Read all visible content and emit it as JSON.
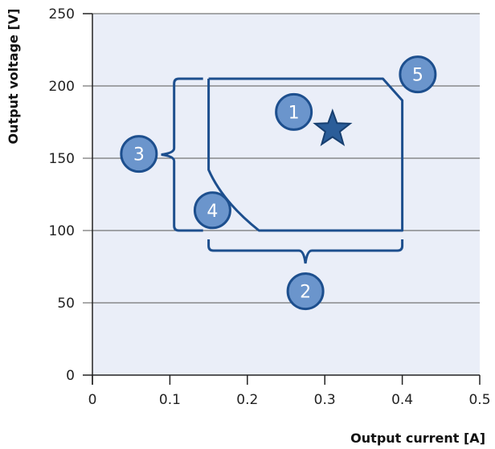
{
  "chart_data": {
    "type": "diagram",
    "xlabel": "Output current [A]",
    "ylabel": "Output voltage [V]",
    "xlim": [
      0,
      0.5
    ],
    "ylim": [
      0,
      250
    ],
    "x_ticks": [
      "0",
      "0.1",
      "0.2",
      "0.3",
      "0.4",
      "0.5"
    ],
    "y_ticks": [
      "0",
      "50",
      "100",
      "150",
      "200",
      "250"
    ],
    "grid": "horizontal",
    "operating_region": {
      "outline": [
        [
          0.15,
          205
        ],
        [
          0.375,
          205
        ],
        [
          0.4,
          190
        ],
        [
          0.4,
          100
        ],
        [
          0.215,
          100
        ],
        [
          0.15,
          142
        ],
        [
          0.15,
          205
        ]
      ]
    },
    "voltage_bracket": {
      "x": 0.12,
      "y_range": [
        100,
        205
      ],
      "mid": 152.5
    },
    "current_bracket": {
      "y": 85,
      "x_range": [
        0.15,
        0.4
      ],
      "mid": 0.275
    },
    "operating_point": {
      "x": 0.31,
      "y": 170
    },
    "markers": [
      {
        "label": "1",
        "x": 0.26,
        "y": 182
      },
      {
        "label": "2",
        "x": 0.275,
        "y": 58
      },
      {
        "label": "3",
        "x": 0.06,
        "y": 153
      },
      {
        "label": "4",
        "x": 0.155,
        "y": 114
      },
      {
        "label": "5",
        "x": 0.42,
        "y": 208
      }
    ],
    "colors": {
      "plot_bg": "#eaeef8",
      "outline": "#1d4f8e",
      "marker_fill": "#6b95cc",
      "star": "#2b5d99",
      "grid": "#555555"
    }
  }
}
